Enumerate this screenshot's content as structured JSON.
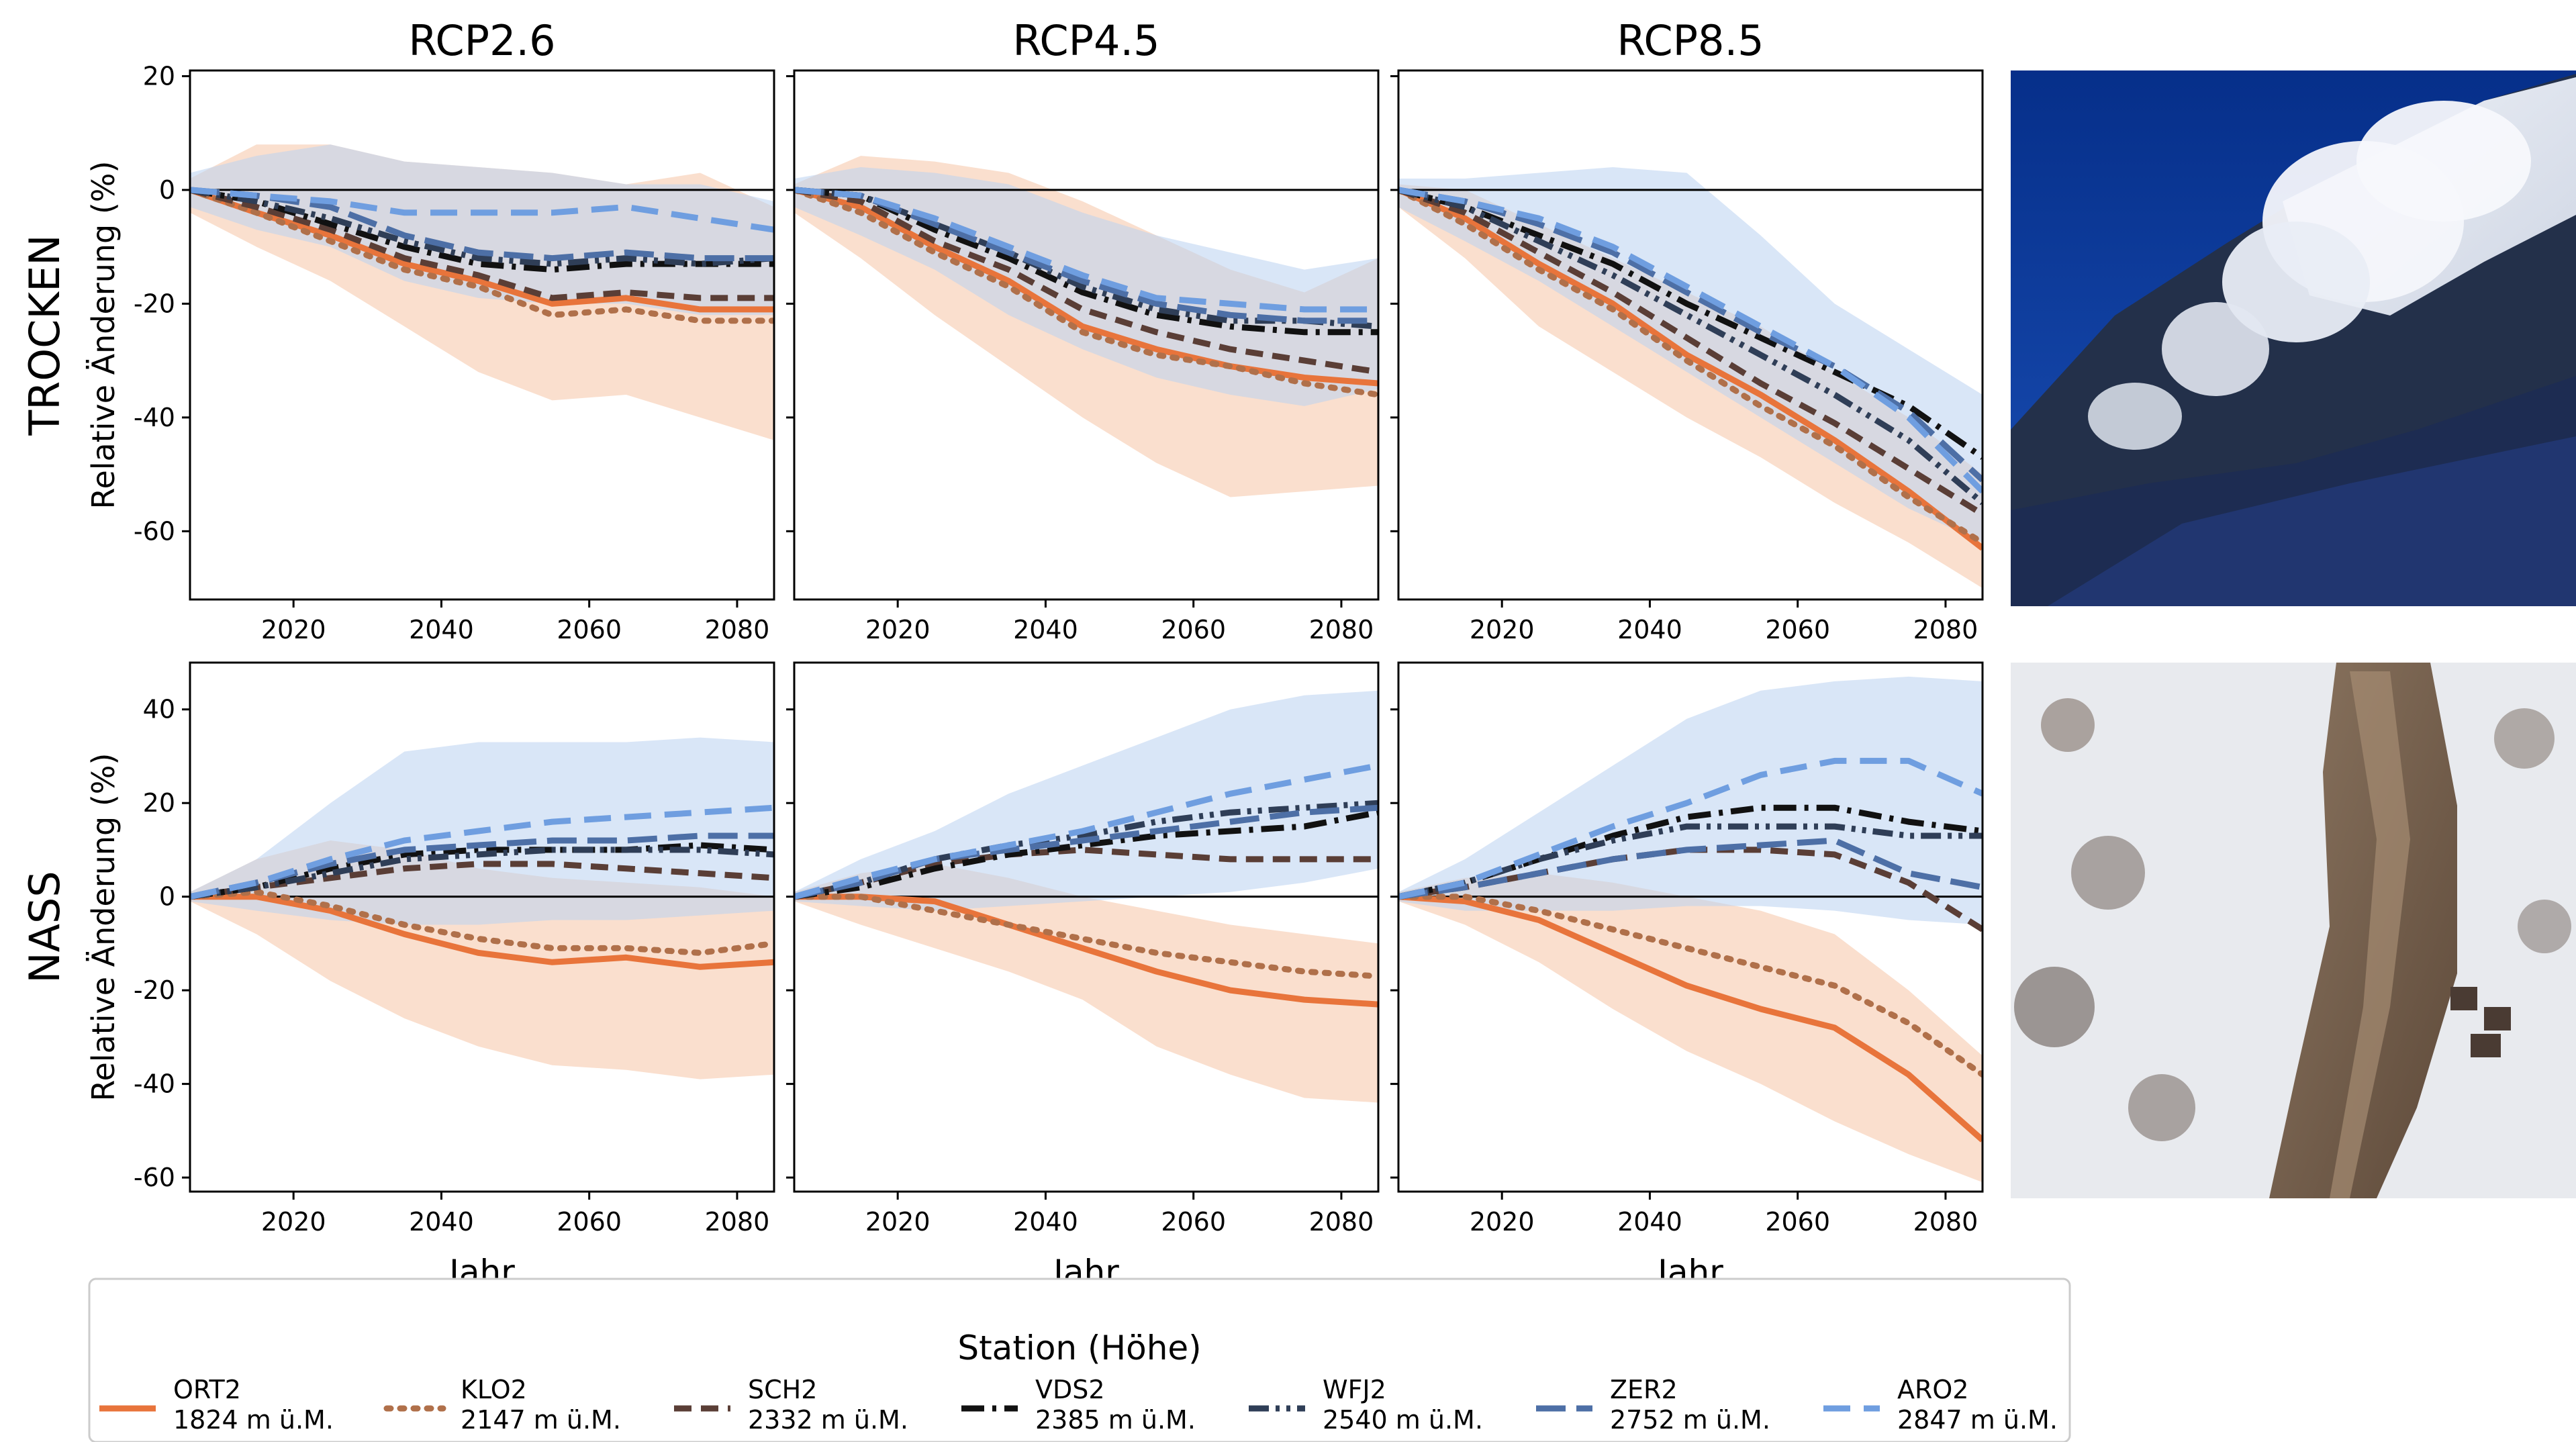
{
  "chart_data": {
    "type": "line",
    "columns": [
      "RCP2.6",
      "RCP4.5",
      "RCP8.5"
    ],
    "rows": [
      "TROCKEN",
      "NASS"
    ],
    "xlabel": "Jahr",
    "ylabel": "Relative Änderung (%)",
    "xlim": [
      2006,
      2085
    ],
    "xticks": [
      2020,
      2040,
      2060,
      2080
    ],
    "rows_config": [
      {
        "ylim": [
          -72,
          21
        ],
        "yticks": [
          20,
          0,
          -20,
          -40,
          -60
        ]
      },
      {
        "ylim": [
          -63,
          50
        ],
        "yticks": [
          40,
          20,
          0,
          -20,
          -40,
          -60
        ]
      }
    ],
    "legend": {
      "title": "Station (Höhe)",
      "placement": "bottom"
    },
    "stations": [
      {
        "name": "ORT2",
        "elevation": "1824 m ü.M.",
        "color": "#e8743b",
        "dash": "solid"
      },
      {
        "name": "KLO2",
        "elevation": "2147 m ü.M.",
        "color": "#b0704a",
        "dash": "dotted"
      },
      {
        "name": "SCH2",
        "elevation": "2332 m ü.M.",
        "color": "#5a3e36",
        "dash": "dashed"
      },
      {
        "name": "VDS2",
        "elevation": "2385 m ü.M.",
        "color": "#111111",
        "dash": "dashdot"
      },
      {
        "name": "WFJ2",
        "elevation": "2540 m ü.M.",
        "color": "#2f3e57",
        "dash": "dashdotdot"
      },
      {
        "name": "ZER2",
        "elevation": "2752 m ü.M.",
        "color": "#4d6fa6",
        "dash": "longdash"
      },
      {
        "name": "ARO2",
        "elevation": "2847 m ü.M.",
        "color": "#6f9ee0",
        "dash": "longdash-light"
      }
    ],
    "band_colors": {
      "low_station": "#f6c9ad",
      "high_station": "#b9d2f0"
    },
    "panels": [
      {
        "row": "TROCKEN",
        "column": "RCP2.6",
        "x": [
          2006,
          2015,
          2025,
          2035,
          2045,
          2055,
          2065,
          2075,
          2085
        ],
        "series": [
          {
            "name": "ORT2",
            "values": [
              0,
              -4,
              -8,
              -13,
              -16,
              -20,
              -19,
              -21,
              -21
            ]
          },
          {
            "name": "KLO2",
            "values": [
              0,
              -4,
              -9,
              -14,
              -17,
              -22,
              -21,
              -23,
              -23
            ]
          },
          {
            "name": "SCH2",
            "values": [
              0,
              -3,
              -7,
              -12,
              -15,
              -19,
              -18,
              -19,
              -19
            ]
          },
          {
            "name": "VDS2",
            "values": [
              0,
              -2,
              -6,
              -10,
              -13,
              -14,
              -13,
              -13,
              -13
            ]
          },
          {
            "name": "WFJ2",
            "values": [
              0,
              -2,
              -5,
              -9,
              -12,
              -13,
              -12,
              -13,
              -12
            ]
          },
          {
            "name": "ZER2",
            "values": [
              0,
              -1,
              -3,
              -8,
              -11,
              -12,
              -11,
              -12,
              -12
            ]
          },
          {
            "name": "ARO2",
            "values": [
              0,
              -1,
              -2,
              -4,
              -4,
              -4,
              -3,
              -5,
              -7
            ]
          }
        ],
        "bands": [
          {
            "name": "ORT2",
            "upper": [
              2,
              8,
              8,
              5,
              4,
              3,
              1,
              3,
              -3
            ],
            "lower": [
              -4,
              -10,
              -16,
              -24,
              -32,
              -37,
              -36,
              -40,
              -44
            ]
          },
          {
            "name": "ARO2",
            "upper": [
              3,
              6,
              8,
              5,
              4,
              3,
              1,
              1,
              -2
            ],
            "lower": [
              -3,
              -7,
              -10,
              -16,
              -19,
              -20,
              -20,
              -22,
              -22
            ]
          }
        ]
      },
      {
        "row": "TROCKEN",
        "column": "RCP4.5",
        "x": [
          2006,
          2015,
          2025,
          2035,
          2045,
          2055,
          2065,
          2075,
          2085
        ],
        "series": [
          {
            "name": "ORT2",
            "values": [
              0,
              -3,
              -10,
              -16,
              -24,
              -28,
              -31,
              -33,
              -34
            ]
          },
          {
            "name": "KLO2",
            "values": [
              0,
              -4,
              -11,
              -17,
              -25,
              -29,
              -31,
              -34,
              -36
            ]
          },
          {
            "name": "SCH2",
            "values": [
              0,
              -2,
              -9,
              -14,
              -21,
              -25,
              -28,
              -30,
              -32
            ]
          },
          {
            "name": "VDS2",
            "values": [
              0,
              -1,
              -7,
              -12,
              -18,
              -22,
              -24,
              -25,
              -25
            ]
          },
          {
            "name": "WFJ2",
            "values": [
              0,
              -1,
              -6,
              -11,
              -17,
              -21,
              -23,
              -23,
              -24
            ]
          },
          {
            "name": "ZER2",
            "values": [
              0,
              -1,
              -6,
              -11,
              -16,
              -20,
              -22,
              -23,
              -23
            ]
          },
          {
            "name": "ARO2",
            "values": [
              0,
              -1,
              -5,
              -10,
              -15,
              -19,
              -20,
              -21,
              -21
            ]
          }
        ],
        "bands": [
          {
            "name": "ORT2",
            "upper": [
              1,
              6,
              5,
              3,
              -2,
              -8,
              -14,
              -18,
              -12
            ],
            "lower": [
              -4,
              -12,
              -22,
              -31,
              -40,
              -48,
              -54,
              -53,
              -52
            ]
          },
          {
            "name": "ARO2",
            "upper": [
              2,
              4,
              3,
              1,
              -4,
              -8,
              -11,
              -14,
              -12
            ],
            "lower": [
              -3,
              -8,
              -14,
              -22,
              -28,
              -33,
              -36,
              -38,
              -35
            ]
          }
        ]
      },
      {
        "row": "TROCKEN",
        "column": "RCP8.5",
        "x": [
          2006,
          2015,
          2025,
          2035,
          2045,
          2055,
          2065,
          2075,
          2085
        ],
        "series": [
          {
            "name": "ORT2",
            "values": [
              0,
              -5,
              -13,
              -20,
              -29,
              -36,
              -44,
              -53,
              -63
            ]
          },
          {
            "name": "KLO2",
            "values": [
              0,
              -6,
              -14,
              -21,
              -30,
              -38,
              -45,
              -54,
              -62
            ]
          },
          {
            "name": "SCH2",
            "values": [
              0,
              -4,
              -11,
              -18,
              -26,
              -34,
              -41,
              -49,
              -57
            ]
          },
          {
            "name": "VDS2",
            "values": [
              0,
              -3,
              -8,
              -13,
              -20,
              -26,
              -32,
              -38,
              -47
            ]
          },
          {
            "name": "WFJ2",
            "values": [
              0,
              -3,
              -9,
              -15,
              -22,
              -29,
              -36,
              -44,
              -55
            ]
          },
          {
            "name": "ZER2",
            "values": [
              0,
              -2,
              -6,
              -11,
              -18,
              -25,
              -31,
              -39,
              -51
            ]
          },
          {
            "name": "ARO2",
            "values": [
              0,
              -2,
              -5,
              -10,
              -17,
              -24,
              -31,
              -40,
              -53
            ]
          }
        ],
        "bands": [
          {
            "name": "ORT2",
            "upper": [
              1,
              0,
              -6,
              -12,
              -18,
              -24,
              -32,
              -40,
              -50
            ],
            "lower": [
              -3,
              -12,
              -24,
              -32,
              -40,
              -47,
              -55,
              -62,
              -70
            ]
          },
          {
            "name": "ARO2",
            "upper": [
              2,
              2,
              3,
              4,
              3,
              -8,
              -20,
              -28,
              -36
            ],
            "lower": [
              -3,
              -9,
              -16,
              -24,
              -32,
              -40,
              -48,
              -56,
              -62
            ]
          }
        ]
      },
      {
        "row": "NASS",
        "column": "RCP2.6",
        "x": [
          2006,
          2015,
          2025,
          2035,
          2045,
          2055,
          2065,
          2075,
          2085
        ],
        "series": [
          {
            "name": "ORT2",
            "values": [
              0,
              0,
              -3,
              -8,
              -12,
              -14,
              -13,
              -15,
              -14
            ]
          },
          {
            "name": "KLO2",
            "values": [
              0,
              1,
              -2,
              -6,
              -9,
              -11,
              -11,
              -12,
              -10
            ]
          },
          {
            "name": "SCH2",
            "values": [
              0,
              2,
              4,
              6,
              7,
              7,
              6,
              5,
              4
            ]
          },
          {
            "name": "VDS2",
            "values": [
              0,
              2,
              6,
              9,
              10,
              10,
              10,
              11,
              10
            ]
          },
          {
            "name": "WFJ2",
            "values": [
              0,
              2,
              5,
              8,
              9,
              10,
              10,
              10,
              9
            ]
          },
          {
            "name": "ZER2",
            "values": [
              0,
              3,
              7,
              10,
              11,
              12,
              12,
              13,
              13
            ]
          },
          {
            "name": "ARO2",
            "values": [
              0,
              3,
              8,
              12,
              14,
              16,
              17,
              18,
              19
            ]
          }
        ],
        "bands": [
          {
            "name": "ORT2",
            "upper": [
              1,
              8,
              12,
              10,
              6,
              4,
              3,
              2,
              0
            ],
            "lower": [
              -1,
              -8,
              -18,
              -26,
              -32,
              -36,
              -37,
              -39,
              -38
            ]
          },
          {
            "name": "ARO2",
            "upper": [
              1,
              8,
              20,
              31,
              33,
              33,
              33,
              34,
              33
            ],
            "lower": [
              -1,
              -3,
              -5,
              -6,
              -6,
              -5,
              -5,
              -4,
              -3
            ]
          }
        ]
      },
      {
        "row": "NASS",
        "column": "RCP4.5",
        "x": [
          2006,
          2015,
          2025,
          2035,
          2045,
          2055,
          2065,
          2075,
          2085
        ],
        "series": [
          {
            "name": "ORT2",
            "values": [
              0,
              0,
              -1,
              -6,
              -11,
              -16,
              -20,
              -22,
              -23
            ]
          },
          {
            "name": "KLO2",
            "values": [
              0,
              0,
              -3,
              -6,
              -9,
              -12,
              -14,
              -16,
              -17
            ]
          },
          {
            "name": "SCH2",
            "values": [
              0,
              3,
              7,
              9,
              10,
              9,
              8,
              8,
              8
            ]
          },
          {
            "name": "VDS2",
            "values": [
              0,
              2,
              6,
              9,
              11,
              13,
              14,
              15,
              18
            ]
          },
          {
            "name": "WFJ2",
            "values": [
              0,
              3,
              8,
              11,
              13,
              16,
              18,
              19,
              20
            ]
          },
          {
            "name": "ZER2",
            "values": [
              0,
              3,
              8,
              10,
              12,
              14,
              16,
              18,
              19
            ]
          },
          {
            "name": "ARO2",
            "values": [
              0,
              4,
              8,
              11,
              14,
              18,
              22,
              25,
              28
            ]
          }
        ],
        "bands": [
          {
            "name": "ORT2",
            "upper": [
              1,
              5,
              7,
              4,
              0,
              -3,
              -6,
              -8,
              -10
            ],
            "lower": [
              -1,
              -6,
              -11,
              -16,
              -22,
              -32,
              -38,
              -43,
              -44
            ]
          },
          {
            "name": "ARO2",
            "upper": [
              1,
              8,
              14,
              22,
              28,
              34,
              40,
              43,
              44
            ],
            "lower": [
              -1,
              -2,
              -3,
              -2,
              -1,
              0,
              1,
              3,
              6
            ]
          }
        ]
      },
      {
        "row": "NASS",
        "column": "RCP8.5",
        "x": [
          2006,
          2015,
          2025,
          2035,
          2045,
          2055,
          2065,
          2075,
          2085
        ],
        "series": [
          {
            "name": "ORT2",
            "values": [
              0,
              -1,
              -5,
              -12,
              -19,
              -24,
              -28,
              -38,
              -52
            ]
          },
          {
            "name": "KLO2",
            "values": [
              0,
              0,
              -3,
              -7,
              -11,
              -15,
              -19,
              -27,
              -38
            ]
          },
          {
            "name": "SCH2",
            "values": [
              0,
              2,
              5,
              8,
              10,
              10,
              9,
              3,
              -7
            ]
          },
          {
            "name": "VDS2",
            "values": [
              0,
              3,
              8,
              13,
              17,
              19,
              19,
              16,
              14
            ]
          },
          {
            "name": "WFJ2",
            "values": [
              0,
              3,
              8,
              12,
              15,
              15,
              15,
              13,
              13
            ]
          },
          {
            "name": "ZER2",
            "values": [
              0,
              2,
              5,
              8,
              10,
              11,
              12,
              5,
              2
            ]
          },
          {
            "name": "ARO2",
            "values": [
              0,
              3,
              9,
              15,
              20,
              26,
              29,
              29,
              22
            ]
          }
        ],
        "bands": [
          {
            "name": "ORT2",
            "upper": [
              1,
              4,
              5,
              3,
              0,
              -3,
              -8,
              -20,
              -34
            ],
            "lower": [
              -1,
              -6,
              -14,
              -24,
              -33,
              -40,
              -48,
              -55,
              -61
            ]
          },
          {
            "name": "ARO2",
            "upper": [
              1,
              8,
              18,
              28,
              38,
              44,
              46,
              47,
              46
            ],
            "lower": [
              -1,
              -3,
              -3,
              -3,
              -2,
              -2,
              -3,
              -5,
              -6
            ]
          }
        ]
      }
    ]
  }
}
